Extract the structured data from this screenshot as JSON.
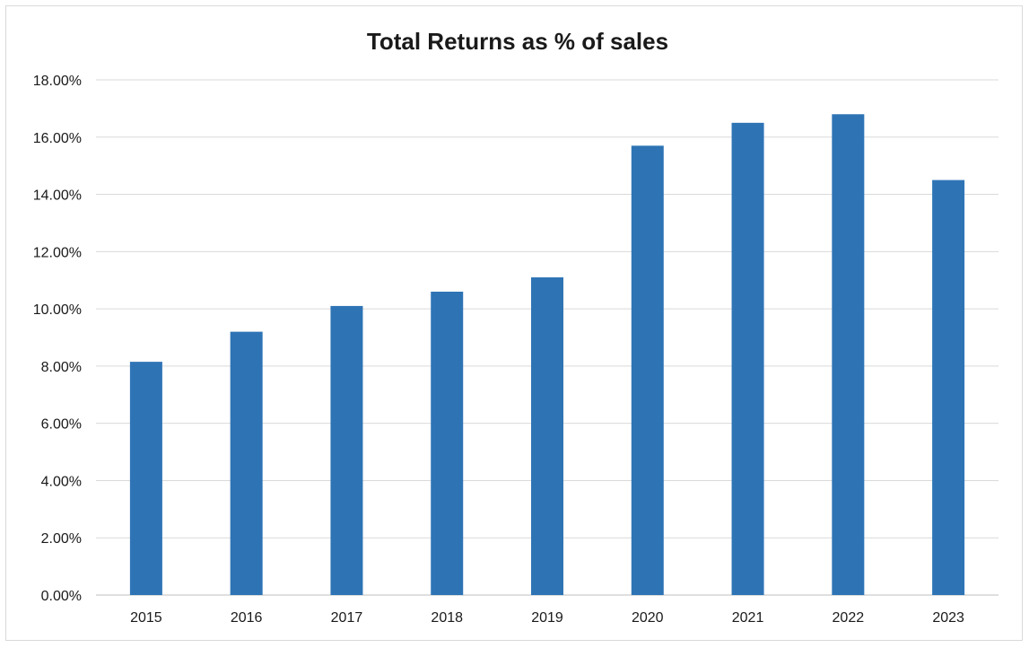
{
  "chart_data": {
    "type": "bar",
    "title": "Total Returns as % of sales",
    "xlabel": "",
    "ylabel": "",
    "categories": [
      "2015",
      "2016",
      "2017",
      "2018",
      "2019",
      "2020",
      "2021",
      "2022",
      "2023"
    ],
    "values": [
      8.15,
      9.2,
      10.1,
      10.6,
      11.1,
      15.7,
      16.5,
      16.8,
      14.5
    ],
    "ylim": [
      0,
      18
    ],
    "yticks": [
      0,
      2,
      4,
      6,
      8,
      10,
      12,
      14,
      16,
      18
    ],
    "ytick_labels": [
      "0.00%",
      "2.00%",
      "4.00%",
      "6.00%",
      "8.00%",
      "10.00%",
      "12.00%",
      "14.00%",
      "16.00%",
      "18.00%"
    ],
    "grid": true,
    "legend": "none",
    "colors": {
      "bar": "#2e74b5",
      "grid": "#d9d9d9",
      "text": "#1a1a1a"
    }
  }
}
